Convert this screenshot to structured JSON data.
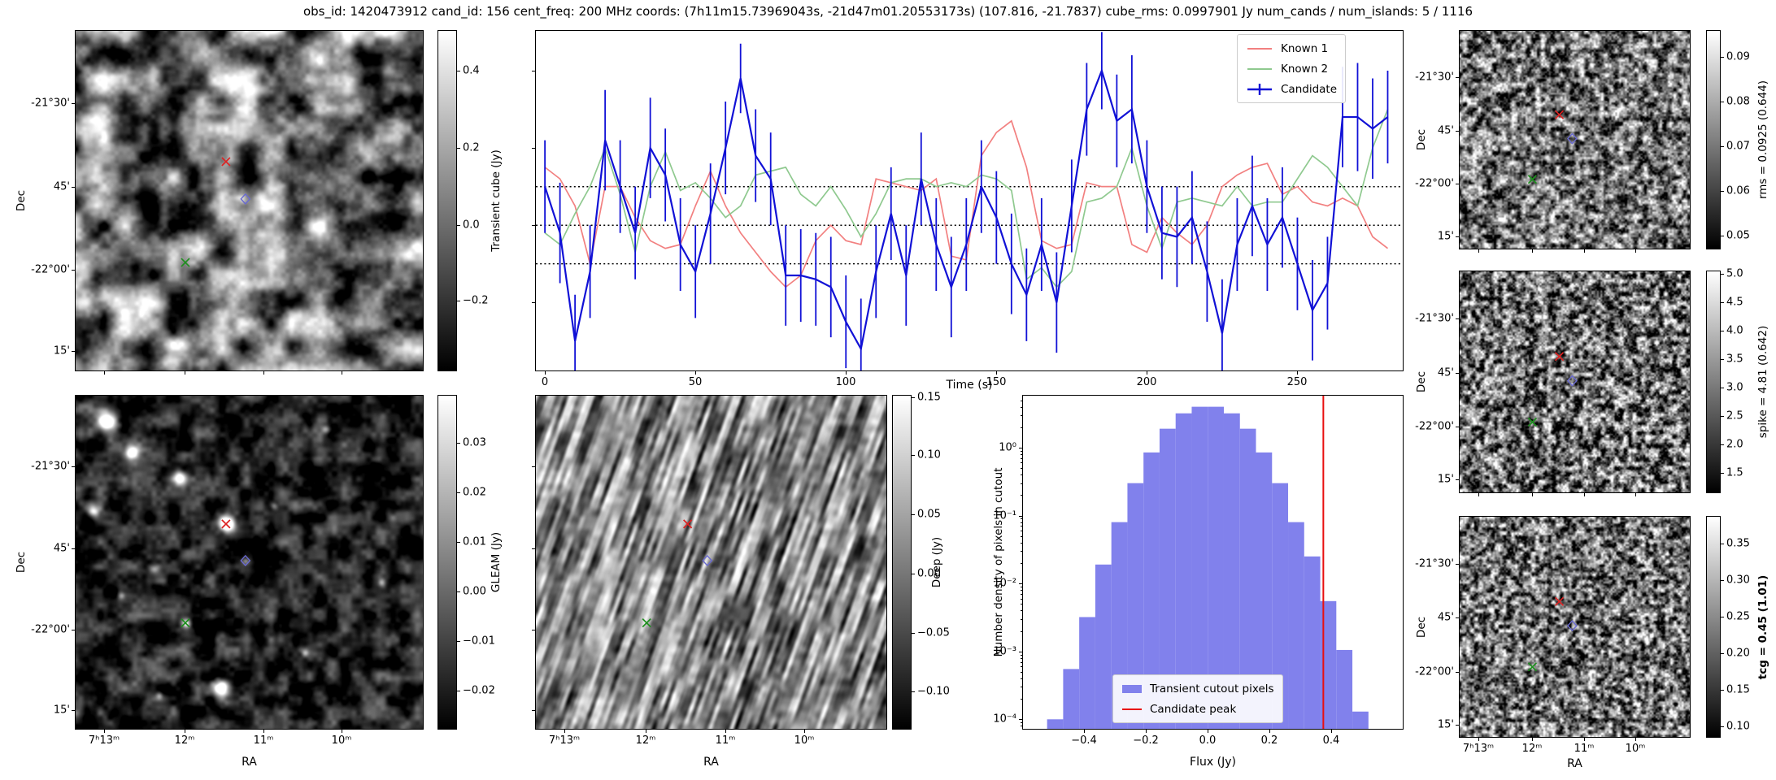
{
  "title": "obs_id: 1420473912 cand_id: 156 cent_freq: 200 MHz coords: (7h11m15.73969043s, -21d47m01.20553173s) (107.816, -21.7837) cube_rms: 0.0997901 Jy num_cands / num_islands: 5 / 1116",
  "colors": {
    "known1": "#f28080",
    "known2": "#8fc98f",
    "candidate": "#1111d6",
    "marker_red": "#dd2222",
    "marker_green": "#1f8f1f",
    "marker_blue": "#6a6ad0",
    "dotted_line": "#000000"
  },
  "axes": {
    "dec_label": "Dec",
    "ra_label": "RA",
    "dec_ticks": [
      [
        "-21°30'",
        0.213
      ],
      [
        "45'",
        0.459
      ],
      [
        "-22°00'",
        0.703
      ],
      [
        "15'",
        0.943
      ]
    ],
    "ra_ticks": [
      [
        "7ʰ13ᵐ",
        0.082
      ],
      [
        "12ᵐ",
        0.314
      ],
      [
        "11ᵐ",
        0.54
      ],
      [
        "10ᵐ",
        0.765
      ]
    ]
  },
  "markers": [
    {
      "type": "x",
      "color_key": "marker_red",
      "fx": 0.433,
      "fy": 0.385,
      "name": "candidate-position-marker"
    },
    {
      "type": "diamond",
      "color_key": "marker_blue",
      "fx": 0.489,
      "fy": 0.495,
      "name": "known-source-marker-blue"
    },
    {
      "type": "x",
      "color_key": "marker_green",
      "fx": 0.316,
      "fy": 0.682,
      "name": "known-source-marker-green"
    }
  ],
  "panels": {
    "transient": {
      "colorbar_label": "Transient cube (Jy)",
      "cb_ticks": [
        [
          "0.4",
          0.117
        ],
        [
          "0.2",
          0.344
        ],
        [
          "0.0",
          0.572
        ],
        [
          "−0.2",
          0.794
        ]
      ]
    },
    "gleam": {
      "colorbar_label": "GLEAM (Jy)",
      "cb_ticks": [
        [
          "0.03",
          0.141
        ],
        [
          "0.02",
          0.29
        ],
        [
          "0.01",
          0.439
        ],
        [
          "0.00",
          0.588
        ],
        [
          "−0.01",
          0.737
        ],
        [
          "−0.02",
          0.886
        ]
      ]
    },
    "deep": {
      "colorbar_label": "Deep (Jy)",
      "cb_ticks": [
        [
          "0.15",
          0.006
        ],
        [
          "0.10",
          0.178
        ],
        [
          "0.05",
          0.356
        ],
        [
          "0.00",
          0.534
        ],
        [
          "−0.05",
          0.712
        ],
        [
          "−0.10",
          0.888
        ]
      ]
    },
    "rms": {
      "colorbar_label": "rms = 0.0925 (0.644)",
      "cb_ticks": [
        [
          "0.09",
          0.119
        ],
        [
          "0.08",
          0.324
        ],
        [
          "0.07",
          0.529
        ],
        [
          "0.06",
          0.735
        ],
        [
          "0.05",
          0.94
        ]
      ]
    },
    "spike": {
      "colorbar_label": "spike = 4.81 (0.642)",
      "cb_ticks": [
        [
          "5.0",
          0.012
        ],
        [
          "4.5",
          0.141
        ],
        [
          "4.0",
          0.27
        ],
        [
          "3.5",
          0.398
        ],
        [
          "3.0",
          0.527
        ],
        [
          "2.5",
          0.656
        ],
        [
          "2.0",
          0.784
        ],
        [
          "1.5",
          0.913
        ]
      ]
    },
    "tcg": {
      "colorbar_label": "tcg = 0.45 (1.01)",
      "bold": true,
      "cb_ticks": [
        [
          "0.35",
          0.122
        ],
        [
          "0.30",
          0.288
        ],
        [
          "0.25",
          0.454
        ],
        [
          "0.20",
          0.62
        ],
        [
          "0.15",
          0.786
        ],
        [
          "0.10",
          0.952
        ]
      ]
    }
  },
  "chart_data": [
    {
      "id": "lightcurve",
      "type": "line",
      "xlabel": "Time (s)",
      "xlim": [
        -3,
        285
      ],
      "ylim": [
        -0.376,
        0.503
      ],
      "x_ticks": [
        0,
        50,
        100,
        150,
        200,
        250
      ],
      "y_ticks": [
        0.4,
        0.2,
        0.0,
        -0.2
      ],
      "dotted_lines": [
        0.0998,
        0.0,
        -0.0998
      ],
      "legend_position": "upper right",
      "x": [
        0,
        5,
        10,
        15,
        20,
        25,
        30,
        35,
        40,
        45,
        50,
        55,
        60,
        65,
        70,
        75,
        80,
        85,
        90,
        95,
        100,
        105,
        110,
        115,
        120,
        125,
        130,
        135,
        140,
        145,
        150,
        155,
        160,
        165,
        170,
        175,
        180,
        185,
        190,
        195,
        200,
        205,
        210,
        215,
        220,
        225,
        230,
        235,
        240,
        245,
        250,
        255,
        260,
        265,
        270,
        275,
        280
      ],
      "series": [
        {
          "name": "Known 1",
          "color": "#f28080",
          "values": [
            0.15,
            0.12,
            0.05,
            -0.1,
            0.1,
            0.1,
            0.02,
            -0.04,
            -0.06,
            -0.05,
            0.05,
            0.14,
            0.05,
            -0.02,
            -0.07,
            -0.12,
            -0.16,
            -0.13,
            -0.04,
            0.0,
            -0.04,
            -0.05,
            0.12,
            0.11,
            0.1,
            0.09,
            0.12,
            -0.08,
            -0.09,
            0.18,
            0.24,
            0.27,
            0.15,
            -0.04,
            -0.06,
            -0.05,
            0.11,
            0.1,
            0.1,
            -0.05,
            -0.07,
            0.02,
            -0.02,
            -0.05,
            0.0,
            0.1,
            0.13,
            0.15,
            0.16,
            0.08,
            0.1,
            0.06,
            0.05,
            0.07,
            0.05,
            -0.03,
            -0.06
          ]
        },
        {
          "name": "Known 2",
          "color": "#8fc98f",
          "values": [
            -0.02,
            -0.05,
            0.03,
            0.1,
            0.2,
            0.08,
            -0.07,
            0.1,
            0.19,
            0.09,
            0.11,
            0.07,
            0.02,
            0.05,
            0.13,
            0.14,
            0.15,
            0.08,
            0.05,
            0.1,
            0.04,
            -0.03,
            0.03,
            0.11,
            0.12,
            0.12,
            0.1,
            0.11,
            0.1,
            0.13,
            0.12,
            0.09,
            -0.14,
            -0.11,
            -0.16,
            -0.12,
            0.06,
            0.07,
            0.1,
            0.2,
            0.05,
            -0.06,
            0.06,
            0.07,
            0.06,
            0.05,
            0.1,
            0.05,
            0.06,
            0.06,
            0.12,
            0.18,
            0.15,
            0.1,
            0.05,
            0.2,
            0.3
          ]
        },
        {
          "name": "Candidate",
          "color": "#1111d6",
          "values": [
            0.1,
            -0.02,
            -0.3,
            -0.12,
            0.22,
            0.1,
            -0.02,
            0.2,
            0.13,
            -0.05,
            -0.12,
            0.03,
            0.2,
            0.38,
            0.18,
            0.12,
            -0.13,
            -0.13,
            -0.14,
            -0.16,
            -0.25,
            -0.32,
            -0.12,
            0.03,
            -0.13,
            0.12,
            -0.05,
            -0.16,
            -0.05,
            0.1,
            0.02,
            -0.1,
            -0.18,
            -0.05,
            -0.2,
            0.05,
            0.3,
            0.4,
            0.27,
            0.3,
            0.1,
            -0.02,
            -0.03,
            0.02,
            -0.12,
            -0.28,
            -0.05,
            0.05,
            -0.05,
            0.02,
            -0.1,
            -0.22,
            -0.15,
            0.28,
            0.28,
            0.25,
            0.28
          ],
          "errors": [
            0.12,
            0.13,
            0.12,
            0.12,
            0.13,
            0.12,
            0.12,
            0.13,
            0.12,
            0.12,
            0.12,
            0.13,
            0.12,
            0.09,
            0.12,
            0.12,
            0.13,
            0.12,
            0.12,
            0.13,
            0.12,
            0.13,
            0.12,
            0.12,
            0.13,
            0.12,
            0.12,
            0.13,
            0.12,
            0.12,
            0.12,
            0.13,
            0.12,
            0.12,
            0.13,
            0.12,
            0.12,
            0.1,
            0.12,
            0.14,
            0.12,
            0.12,
            0.13,
            0.12,
            0.13,
            0.14,
            0.12,
            0.13,
            0.12,
            0.13,
            0.12,
            0.13,
            0.12,
            0.13,
            0.14,
            0.13,
            0.12
          ]
        }
      ]
    },
    {
      "id": "pixel_histogram",
      "type": "histogram",
      "xlabel": "Flux (Jy)",
      "ylabel": "Number density of pixels in cutout",
      "xlim": [
        -0.598,
        0.631
      ],
      "x_ticks": [
        -0.4,
        -0.2,
        0.0,
        0.2,
        0.4
      ],
      "x_tick_labels": [
        "−0.4",
        "−0.2",
        "0.0",
        "0.2",
        "0.4"
      ],
      "ylog_range": [
        0.765,
        -4.14
      ],
      "y_ticks": [
        {
          "label": "10⁰",
          "exp": 0
        },
        {
          "label": "10⁻¹",
          "exp": -1
        },
        {
          "label": "10⁻²",
          "exp": -2
        },
        {
          "label": "10⁻³",
          "exp": -3
        },
        {
          "label": "10⁻⁴",
          "exp": -4
        }
      ],
      "bins": {
        "start": -0.52,
        "width": 0.052
      },
      "densities": [
        0.0001,
        0.00055,
        0.0032,
        0.019,
        0.08,
        0.3,
        0.85,
        1.9,
        3.2,
        4.0,
        4.0,
        3.2,
        1.9,
        0.85,
        0.3,
        0.08,
        0.025,
        0.0055,
        0.00105,
        0.00013
      ],
      "peak_value": 0.374,
      "fill_color": "#8181ec",
      "peak_color": "#e81010",
      "legend": [
        {
          "label": "Transient cutout pixels",
          "type": "patch"
        },
        {
          "label": "Candidate peak",
          "type": "line"
        }
      ]
    }
  ]
}
